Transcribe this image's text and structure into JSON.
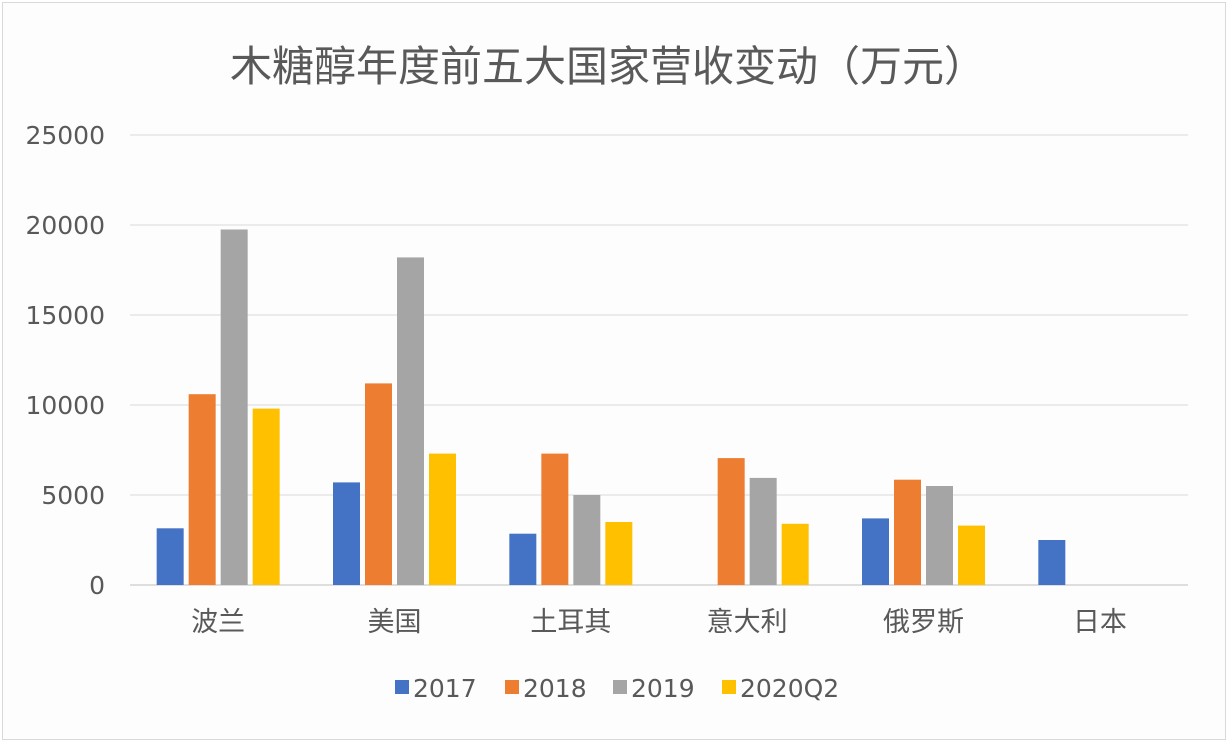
{
  "chart_data": {
    "type": "bar",
    "title": "木糖醇年度前五大国家营收变动（万元）",
    "categories": [
      "波兰",
      "美国",
      "土耳其",
      "意大利",
      "俄罗斯",
      "日本"
    ],
    "series": [
      {
        "name": "2017",
        "color": "#4472c4",
        "values": [
          3150,
          5700,
          2850,
          null,
          3700,
          2500
        ]
      },
      {
        "name": "2018",
        "color": "#ed7d31",
        "values": [
          10600,
          11200,
          7300,
          7050,
          5850,
          null
        ]
      },
      {
        "name": "2019",
        "color": "#a5a5a5",
        "values": [
          19750,
          18200,
          5000,
          5950,
          5500,
          null
        ]
      },
      {
        "name": "2020Q2",
        "color": "#ffc000",
        "values": [
          9800,
          7300,
          3500,
          3400,
          3300,
          null
        ]
      }
    ],
    "yticks": [
      "0",
      "5000",
      "10000",
      "15000",
      "20000",
      "25000"
    ],
    "ylim": [
      0,
      25000
    ],
    "grid": true,
    "legend": "bottom"
  }
}
